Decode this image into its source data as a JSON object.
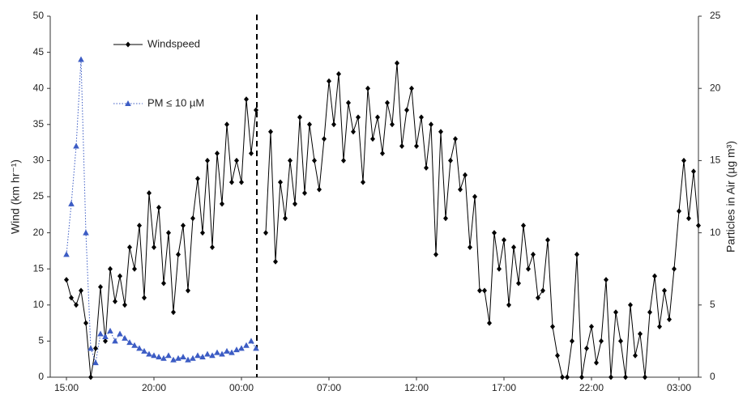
{
  "chart_data": {
    "type": "line",
    "y_label": "Wind (km hr⁻¹)",
    "y2_label": "Particles in Air (µg m³)",
    "categories": [
      "15:00",
      null,
      null,
      null,
      null,
      null,
      null,
      null,
      null,
      null,
      null,
      null,
      null,
      null,
      null,
      null,
      null,
      null,
      "20:00",
      null,
      null,
      null,
      null,
      null,
      null,
      null,
      null,
      null,
      null,
      null,
      null,
      null,
      null,
      null,
      null,
      null,
      "00:00",
      null,
      null,
      null,
      null,
      null,
      null,
      null,
      null,
      null,
      null,
      null,
      null,
      null,
      null,
      null,
      null,
      null,
      "07:00",
      null,
      null,
      null,
      null,
      null,
      null,
      null,
      null,
      null,
      null,
      null,
      null,
      null,
      null,
      null,
      null,
      null,
      "12:00",
      null,
      null,
      null,
      null,
      null,
      null,
      null,
      null,
      null,
      null,
      null,
      null,
      null,
      null,
      null,
      null,
      null,
      "17:00",
      null,
      null,
      null,
      null,
      null,
      null,
      null,
      null,
      null,
      null,
      null,
      null,
      null,
      null,
      null,
      null,
      null,
      "22:00",
      null,
      null,
      null,
      null,
      null,
      null,
      null,
      null,
      null,
      null,
      null,
      null,
      null,
      null,
      null,
      null,
      null,
      "03:00",
      null,
      null,
      null,
      null
    ],
    "series": [
      {
        "name": "Windspeed",
        "color": "#000000",
        "marker": "diamond",
        "values": [
          13.5,
          11,
          10,
          12,
          7.5,
          0,
          4,
          12.5,
          5,
          15,
          10.5,
          14,
          10,
          18,
          15,
          21,
          11,
          25.5,
          18,
          23.5,
          13,
          20,
          9,
          17,
          21,
          12,
          22,
          27.5,
          20,
          30,
          18,
          31,
          24,
          35,
          27,
          30,
          27,
          38.5,
          31,
          37,
          null,
          20,
          34,
          16,
          27,
          22,
          30,
          24,
          36,
          25.5,
          35,
          30,
          26,
          33,
          41,
          35,
          42,
          30,
          38,
          34,
          36,
          27,
          40,
          33,
          36,
          31,
          38,
          35,
          43.5,
          32,
          37,
          40,
          32,
          36,
          29,
          35,
          17,
          34,
          22,
          30,
          33,
          26,
          28,
          18,
          25,
          12,
          12,
          7.5,
          20,
          15,
          19,
          10,
          18,
          13,
          21,
          15,
          17,
          11,
          12,
          19,
          7,
          3,
          0,
          0,
          5,
          17,
          0,
          4,
          7,
          2,
          5,
          13.5,
          0,
          9,
          5,
          0,
          10,
          3,
          6,
          0,
          9,
          14,
          7,
          12,
          8,
          15,
          23,
          30,
          22,
          28.5,
          21
        ]
      },
      {
        "name": "PM ≤ 10 µM",
        "color": "#3c5cc4",
        "marker": "triangle",
        "dash": true,
        "axis": "y2",
        "values": [
          8.5,
          12,
          16,
          22,
          10,
          2,
          1,
          3,
          2.8,
          3.2,
          2.5,
          3,
          2.7,
          2.4,
          2.2,
          2,
          1.8,
          1.6,
          1.5,
          1.4,
          1.3,
          1.5,
          1.2,
          1.3,
          1.4,
          1.2,
          1.3,
          1.5,
          1.4,
          1.6,
          1.5,
          1.7,
          1.6,
          1.8,
          1.7,
          1.9,
          2,
          2.2,
          2.5,
          2,
          null,
          null,
          null,
          null,
          null,
          null,
          null,
          null,
          null,
          null,
          null,
          null,
          null,
          null,
          null,
          null,
          null,
          null,
          null,
          null,
          null,
          null,
          null,
          null,
          null,
          null,
          null,
          null,
          null,
          null,
          null,
          null,
          null,
          null,
          null,
          null,
          null,
          null,
          null,
          null,
          null,
          null,
          null,
          null,
          null,
          null,
          null,
          null,
          null,
          null,
          null,
          null,
          null,
          null,
          null,
          null,
          null,
          null,
          null,
          null,
          null,
          null,
          null,
          null,
          null,
          null,
          null,
          null,
          null,
          null,
          null,
          null,
          null,
          null,
          null,
          null,
          null,
          null,
          null,
          null,
          null,
          null,
          null,
          null,
          null,
          null,
          null,
          null,
          null,
          null,
          null
        ]
      }
    ],
    "ylim": [
      0,
      50
    ],
    "yticks": [
      0,
      5,
      10,
      15,
      20,
      25,
      30,
      35,
      40,
      45,
      50
    ],
    "y2lim": [
      0,
      25
    ],
    "y2ticks": [
      0,
      5,
      10,
      15,
      20,
      25
    ],
    "legend": "upper left"
  }
}
